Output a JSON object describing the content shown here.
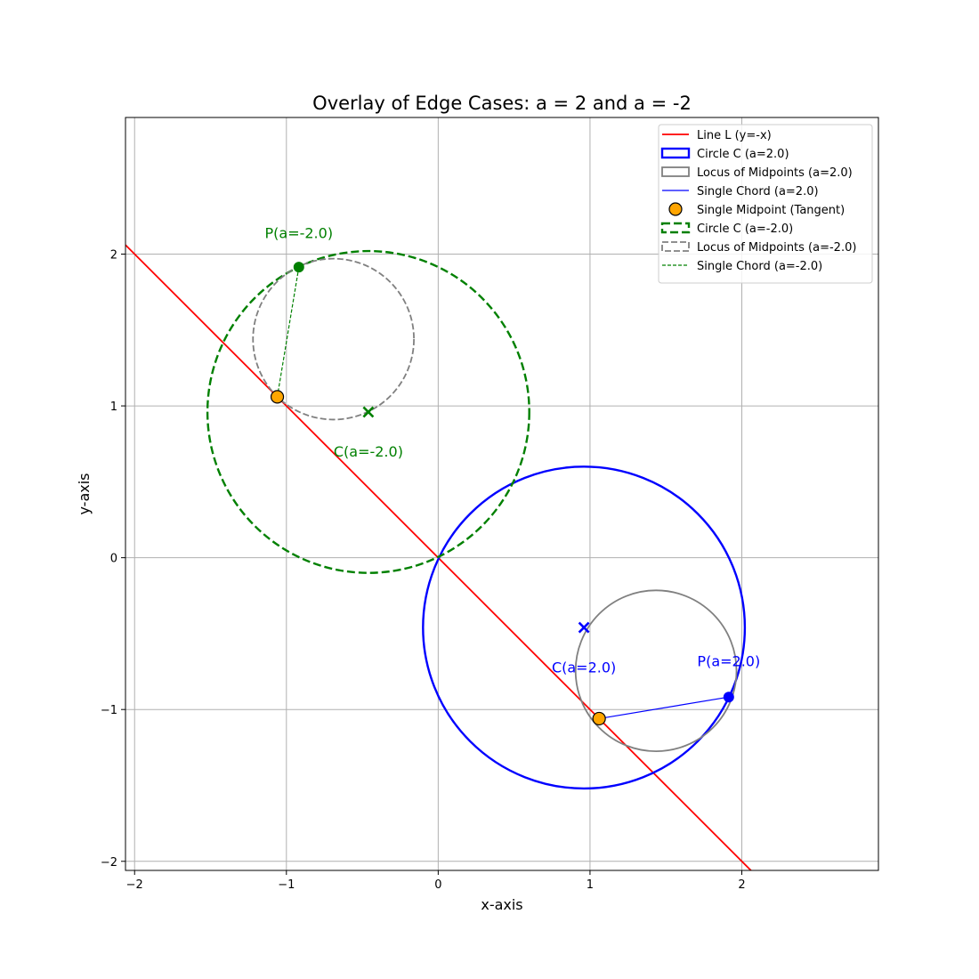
{
  "chart_data": {
    "type": "line",
    "title": "Overlay of Edge Cases: a = 2 and a = -2",
    "xlabel": "x-axis",
    "ylabel": "y-axis",
    "xlim": [
      -2.06,
      2.9
    ],
    "ylim": [
      -2.06,
      2.9
    ],
    "xticks": [
      -2,
      -1,
      0,
      1,
      2
    ],
    "yticks": [
      -2,
      -1,
      0,
      1,
      2
    ],
    "grid": true,
    "legend_position": "top-right",
    "colors": {
      "line": "#ff0000",
      "circle_pos": "#0000ff",
      "circle_neg": "#008000",
      "locus": "#808080",
      "midpoint": "#ffa500"
    },
    "series": [
      {
        "name": "Line L (y=-x)",
        "kind": "line",
        "points": [
          [
            -2.06,
            2.06
          ],
          [
            2.9,
            -2.9
          ]
        ]
      },
      {
        "name": "Circle C (a=2.0)",
        "kind": "circle",
        "center": [
          0.96,
          -0.46
        ],
        "radius": 1.06
      },
      {
        "name": "Locus of Midpoints (a=2.0)",
        "kind": "circle",
        "center": [
          1.435,
          -0.745
        ],
        "radius": 0.53
      },
      {
        "name": "Single Chord (a=2.0)",
        "kind": "segment",
        "points": [
          [
            1.914,
            -0.918
          ],
          [
            1.06,
            -1.06
          ]
        ]
      },
      {
        "name": "Single Midpoint (Tangent)",
        "kind": "markers",
        "points": [
          [
            1.06,
            -1.06
          ],
          [
            -1.06,
            1.06
          ]
        ]
      },
      {
        "name": "Circle C (a=-2.0)",
        "kind": "circle",
        "center": [
          -0.46,
          0.96
        ],
        "radius": 1.06
      },
      {
        "name": "Locus of Midpoints (a=-2.0)",
        "kind": "circle",
        "center": [
          -0.69,
          1.44
        ],
        "radius": 0.53
      },
      {
        "name": "Single Chord (a=-2.0)",
        "kind": "segment",
        "points": [
          [
            -0.918,
            1.914
          ],
          [
            -1.06,
            1.06
          ]
        ]
      }
    ],
    "center_markers": [
      {
        "set": "pos",
        "point": [
          0.96,
          -0.46
        ]
      },
      {
        "set": "neg",
        "point": [
          -0.46,
          0.96
        ]
      }
    ],
    "p_points": [
      {
        "set": "pos",
        "point": [
          1.914,
          -0.918
        ]
      },
      {
        "set": "neg",
        "point": [
          -0.918,
          1.914
        ]
      }
    ],
    "annotations": [
      {
        "text": "C(a=2.0)",
        "x": 0.96,
        "y": -0.72,
        "set": "pos"
      },
      {
        "text": "P(a=2.0)",
        "x": 1.914,
        "y": -0.68,
        "set": "pos"
      },
      {
        "text": "C(a=-2.0)",
        "x": -0.46,
        "y": 0.7,
        "set": "neg"
      },
      {
        "text": "P(a=-2.0)",
        "x": -0.918,
        "y": 2.14,
        "set": "neg"
      }
    ]
  }
}
